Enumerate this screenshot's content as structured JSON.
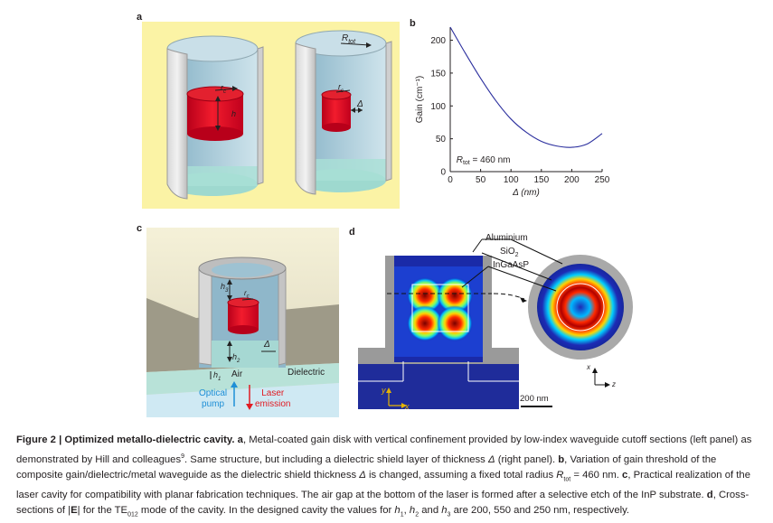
{
  "panels": {
    "a": {
      "label": "a",
      "annotations": {
        "r_tot": "R",
        "r_tot_sub": "tot",
        "r_c_left": "r",
        "r_c_right": "r",
        "r_c_sub": "c",
        "h": "h",
        "delta": "Δ"
      }
    },
    "b": {
      "label": "b",
      "annotation": "R",
      "annotation_sub": "tot",
      "annotation_rest": " = 460 nm"
    },
    "c": {
      "label": "c",
      "labels": {
        "h3": "h",
        "h3_sub": "3",
        "rc": "r",
        "rc_sub": "c",
        "h2": "h",
        "h2_sub": "2",
        "delta": "Δ",
        "h1": "h",
        "h1_sub": "1",
        "air": "Air",
        "dielectric": "Dielectric",
        "optical_pump": "Optical\npump",
        "laser_emission": "Laser\nemission"
      },
      "pump_color": "#1e8fd6",
      "laser_color": "#e11b22"
    },
    "d": {
      "label": "d",
      "labels": {
        "aluminium": "Aluminium",
        "sio2": "SiO",
        "sio2_sub": "2",
        "ingaasp": "InGaAsP",
        "scale": "200 nm",
        "axis_y": "y",
        "axis_x": "x",
        "axis_x2": "x",
        "axis_z": "z"
      },
      "axis_color": "#e6b400"
    }
  },
  "chart_data": {
    "type": "line",
    "x": [
      0,
      25,
      50,
      75,
      100,
      125,
      150,
      175,
      200,
      225,
      250
    ],
    "series": [
      {
        "values": [
          220,
          180,
          142,
          108,
          80,
          60,
          46,
          39,
          37,
          42,
          58
        ]
      }
    ],
    "xlabel": "Δ (nm)",
    "ylabel": "Gain (cm⁻¹)",
    "xlim": [
      0,
      250
    ],
    "ylim": [
      0,
      220
    ],
    "xticks": [
      0,
      50,
      100,
      150,
      200,
      250
    ],
    "yticks": [
      0,
      50,
      100,
      150,
      200
    ],
    "line_color": "#2b2f9e",
    "grid": false
  },
  "caption": {
    "title": "Figure 2 | Optimized metallo-dielectric cavity.",
    "parts": [
      " ",
      "a",
      ", Metal-coated gain disk with vertical confinement provided by low-index waveguide cutoff sections (left panel) as demonstrated by Hill and colleagues",
      "9",
      ". Same structure, but including a dielectric shield layer of thickness ",
      "Δ",
      " (right panel). ",
      "b",
      ", Variation of gain threshold of the composite gain/dielectric/metal waveguide as the dielectric shield thickness ",
      "Δ",
      " is changed, assuming a fixed total radius ",
      "R",
      "tot",
      " = 460 nm. ",
      "c",
      ", Practical realization of the laser cavity for compatibility with planar fabrication techniques. The air gap at the bottom of the laser is formed after a selective etch of the InP substrate. ",
      "d",
      ", Cross-sections of |",
      "E",
      "| for the TE",
      "012",
      " mode of the cavity. In the designed cavity the values for ",
      "h",
      "1",
      ", ",
      "h",
      "2",
      " and ",
      "h",
      "3",
      " are 200, 550 and 250 nm, respectively."
    ]
  }
}
